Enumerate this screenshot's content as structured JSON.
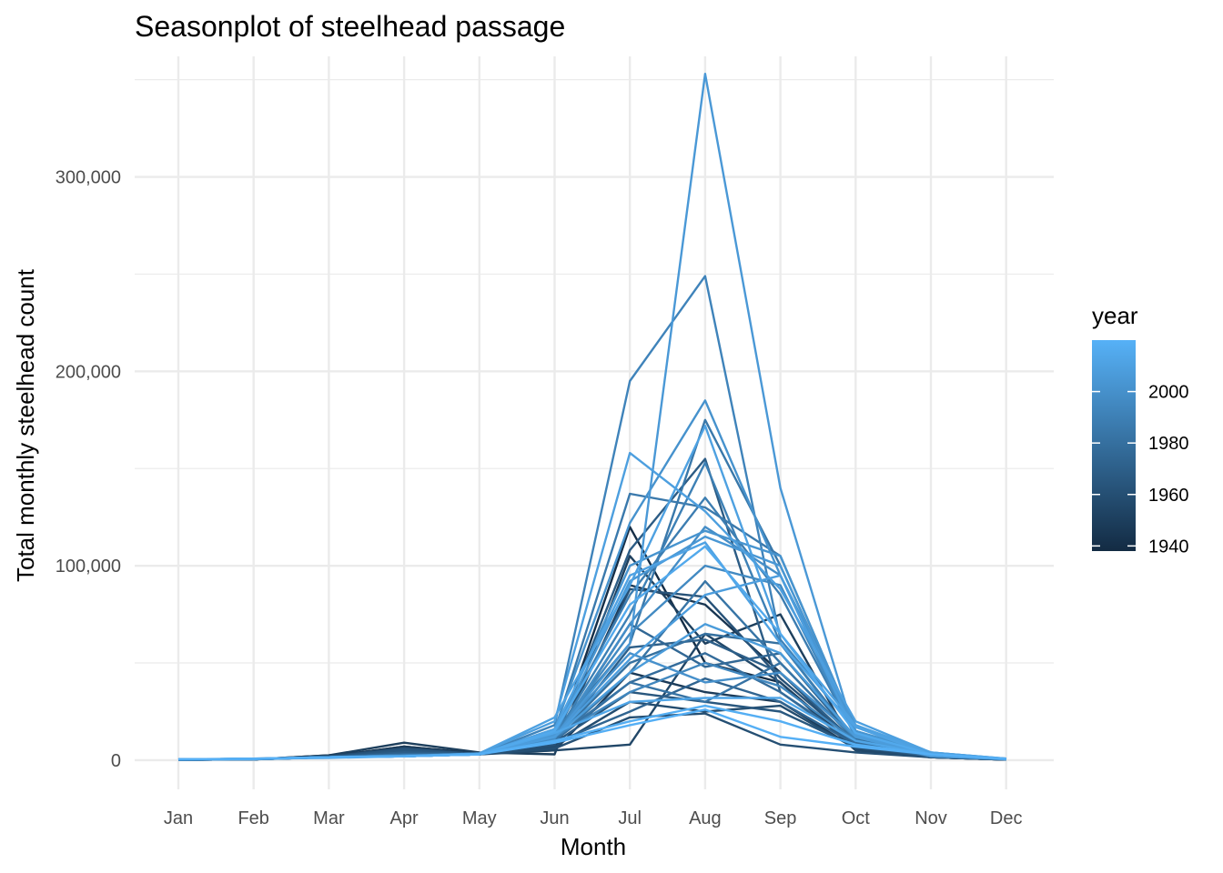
{
  "chart_data": {
    "type": "line",
    "title": "Seasonplot of steelhead passage",
    "xlabel": "Month",
    "ylabel": "Total monthly steelhead count",
    "categories": [
      "Jan",
      "Feb",
      "Mar",
      "Apr",
      "May",
      "Jun",
      "Jul",
      "Aug",
      "Sep",
      "Oct",
      "Nov",
      "Dec"
    ],
    "ylim": [
      -15000,
      362000
    ],
    "yticks": [
      0,
      100000,
      200000,
      300000
    ],
    "ytick_labels": [
      "0",
      "100,000",
      "200,000",
      "300,000"
    ],
    "grid": true,
    "legend": {
      "title": "year",
      "placement": "right",
      "type": "colorbar",
      "range": [
        1938,
        2020
      ],
      "ticks": [
        1940,
        1960,
        1980,
        2000
      ],
      "tick_labels": [
        "1940",
        "1960",
        "1980",
        "2000"
      ],
      "color_low": "#132B43",
      "color_high": "#56B1F7"
    },
    "series": [
      {
        "year": 2005,
        "values": [
          500,
          800,
          1500,
          2000,
          3000,
          12000,
          60000,
          353000,
          140000,
          12000,
          2000,
          500
        ]
      },
      {
        "year": 1992,
        "values": [
          300,
          800,
          1500,
          2500,
          3000,
          18000,
          195000,
          249000,
          62000,
          15000,
          3000,
          800
        ]
      },
      {
        "year": 2009,
        "values": [
          400,
          700,
          1200,
          2000,
          3500,
          20000,
          158000,
          128000,
          88000,
          20000,
          4000,
          800
        ]
      },
      {
        "year": 2001,
        "values": [
          300,
          600,
          1500,
          2200,
          3000,
          16000,
          122000,
          185000,
          95000,
          18000,
          3000,
          600
        ]
      },
      {
        "year": 1985,
        "values": [
          300,
          600,
          1500,
          2500,
          3000,
          14000,
          60000,
          175000,
          100000,
          15000,
          3000,
          600
        ]
      },
      {
        "year": 2010,
        "values": [
          400,
          600,
          1500,
          2000,
          3500,
          22000,
          90000,
          172000,
          65000,
          18000,
          4000,
          800
        ]
      },
      {
        "year": 1986,
        "values": [
          300,
          500,
          1500,
          2500,
          3000,
          15000,
          137000,
          130000,
          105000,
          15000,
          3000,
          600
        ]
      },
      {
        "year": 1968,
        "values": [
          200,
          500,
          1500,
          4000,
          3000,
          10000,
          108000,
          155000,
          35000,
          8000,
          2000,
          400
        ]
      },
      {
        "year": 1990,
        "values": [
          300,
          500,
          1500,
          2500,
          3000,
          12000,
          75000,
          153000,
          60000,
          10000,
          3000,
          500
        ]
      },
      {
        "year": 1988,
        "values": [
          300,
          600,
          1500,
          2500,
          3000,
          13000,
          85000,
          135000,
          85000,
          12000,
          3000,
          600
        ]
      },
      {
        "year": 2002,
        "values": [
          400,
          700,
          1500,
          2000,
          3000,
          14000,
          100000,
          118000,
          105000,
          15000,
          4000,
          700
        ]
      },
      {
        "year": 2004,
        "values": [
          400,
          600,
          1500,
          2000,
          3000,
          13000,
          92000,
          115000,
          100000,
          14000,
          3000,
          700
        ]
      },
      {
        "year": 2011,
        "values": [
          400,
          700,
          1500,
          2000,
          3000,
          16000,
          95000,
          112000,
          60000,
          17000,
          3000,
          700
        ]
      },
      {
        "year": 1998,
        "values": [
          300,
          600,
          1500,
          2000,
          3000,
          11000,
          70000,
          120000,
          95000,
          12000,
          3000,
          600
        ]
      },
      {
        "year": 2015,
        "values": [
          400,
          700,
          1500,
          2000,
          3000,
          15000,
          80000,
          110000,
          65000,
          14000,
          3000,
          700
        ]
      },
      {
        "year": 1996,
        "values": [
          300,
          600,
          1500,
          2000,
          3000,
          12000,
          65000,
          100000,
          90000,
          12000,
          3000,
          600
        ]
      },
      {
        "year": 2008,
        "values": [
          300,
          600,
          1500,
          2000,
          3000,
          12000,
          52000,
          85000,
          95000,
          13000,
          3000,
          600
        ]
      },
      {
        "year": 1983,
        "values": [
          300,
          500,
          1500,
          2000,
          3000,
          10000,
          45000,
          92000,
          50000,
          10000,
          2000,
          500
        ]
      },
      {
        "year": 1962,
        "values": [
          200,
          400,
          1500,
          6000,
          3000,
          8000,
          88000,
          84000,
          42000,
          9000,
          2000,
          400
        ]
      },
      {
        "year": 1950,
        "values": [
          200,
          400,
          2500,
          9000,
          4000,
          3000,
          105000,
          60000,
          75000,
          6000,
          1500,
          300
        ]
      },
      {
        "year": 1945,
        "values": [
          200,
          400,
          2000,
          7000,
          3500,
          6000,
          90000,
          80000,
          45000,
          8000,
          2000,
          300
        ]
      },
      {
        "year": 1955,
        "values": [
          200,
          400,
          2000,
          5000,
          3000,
          5000,
          8000,
          65000,
          40000,
          5000,
          1500,
          300
        ]
      },
      {
        "year": 1940,
        "values": [
          200,
          400,
          2500,
          6000,
          3000,
          7000,
          120000,
          50000,
          40000,
          7000,
          1500,
          300
        ]
      },
      {
        "year": 1970,
        "values": [
          200,
          500,
          1500,
          4000,
          3000,
          9000,
          58000,
          62000,
          45000,
          9000,
          2000,
          400
        ]
      },
      {
        "year": 1975,
        "values": [
          200,
          500,
          1500,
          3000,
          3000,
          10000,
          70000,
          48000,
          55000,
          10000,
          2000,
          400
        ]
      },
      {
        "year": 1978,
        "values": [
          300,
          500,
          1500,
          3000,
          3000,
          10000,
          40000,
          55000,
          35000,
          9000,
          2000,
          500
        ]
      },
      {
        "year": 1980,
        "values": [
          300,
          500,
          1500,
          2500,
          3000,
          11000,
          50000,
          65000,
          60000,
          11000,
          2000,
          500
        ]
      },
      {
        "year": 1965,
        "values": [
          200,
          500,
          1500,
          5000,
          3000,
          9000,
          35000,
          30000,
          25000,
          7000,
          2000,
          400
        ]
      },
      {
        "year": 1958,
        "values": [
          200,
          400,
          2000,
          6000,
          3000,
          7000,
          30000,
          25000,
          28000,
          6000,
          1500,
          300
        ]
      },
      {
        "year": 1948,
        "values": [
          200,
          400,
          2000,
          7000,
          3500,
          5000,
          45000,
          35000,
          30000,
          6000,
          1500,
          300
        ]
      },
      {
        "year": 1973,
        "values": [
          200,
          500,
          1500,
          3000,
          3000,
          9000,
          25000,
          42000,
          30000,
          8000,
          2000,
          400
        ]
      },
      {
        "year": 1994,
        "values": [
          300,
          600,
          1500,
          2000,
          3000,
          12000,
          35000,
          50000,
          38000,
          10000,
          3000,
          600
        ]
      },
      {
        "year": 2000,
        "values": [
          300,
          600,
          1500,
          2000,
          3000,
          13000,
          55000,
          40000,
          45000,
          12000,
          3000,
          600
        ]
      },
      {
        "year": 2013,
        "values": [
          400,
          700,
          1500,
          2000,
          3000,
          14000,
          30000,
          32000,
          32000,
          10000,
          3000,
          700
        ]
      },
      {
        "year": 2018,
        "values": [
          400,
          700,
          1500,
          2000,
          3000,
          10000,
          20000,
          28000,
          20000,
          8000,
          3000,
          700
        ]
      },
      {
        "year": 2019,
        "values": [
          400,
          700,
          1500,
          2000,
          3000,
          9000,
          18000,
          26000,
          12000,
          7000,
          3000,
          700
        ]
      },
      {
        "year": 1960,
        "values": [
          200,
          400,
          2000,
          5000,
          3000,
          6000,
          22000,
          24000,
          8000,
          4000,
          1500,
          300
        ]
      },
      {
        "year": 1982,
        "values": [
          300,
          500,
          1500,
          2500,
          3000,
          11000,
          40000,
          30000,
          50000,
          10000,
          2000,
          500
        ]
      },
      {
        "year": 2007,
        "values": [
          400,
          600,
          1500,
          2000,
          3000,
          12000,
          45000,
          70000,
          55000,
          12000,
          3000,
          600
        ]
      }
    ]
  }
}
